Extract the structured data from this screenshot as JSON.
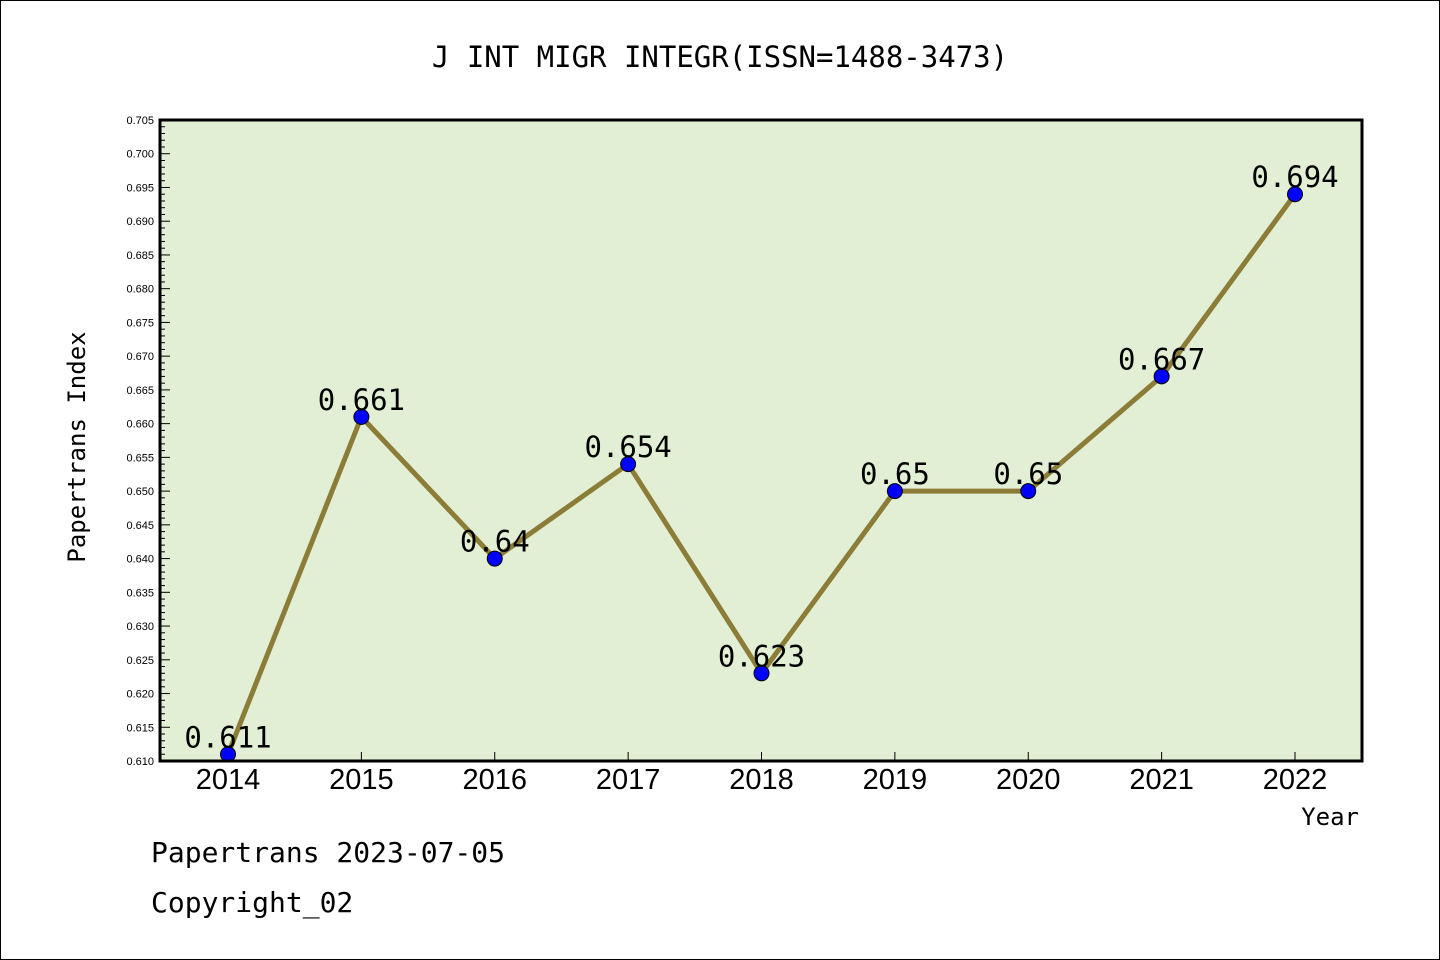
{
  "chart_data": {
    "type": "line",
    "title": "J INT MIGR INTEGR(ISSN=1488-3473)",
    "xlabel": "Year",
    "ylabel": "Papertrans Index",
    "categories": [
      "2014",
      "2015",
      "2016",
      "2017",
      "2018",
      "2019",
      "2020",
      "2021",
      "2022"
    ],
    "series": [
      {
        "values": [
          0.611,
          0.661,
          0.64,
          0.654,
          0.623,
          0.65,
          0.65,
          0.667,
          0.694
        ],
        "labels": [
          "0.611",
          "0.661",
          "0.64",
          "0.654",
          "0.623",
          "0.65",
          "0.65",
          "0.667",
          "0.694"
        ],
        "line_color": "#8b7d37",
        "marker_color": "#0000ff"
      }
    ],
    "ylim": [
      0.61,
      0.705
    ],
    "yticks": [
      "0.610",
      "0.615",
      "0.620",
      "0.625",
      "0.630",
      "0.635",
      "0.640",
      "0.645",
      "0.650",
      "0.655",
      "0.660",
      "0.665",
      "0.670",
      "0.675",
      "0.680",
      "0.685",
      "0.690",
      "0.695",
      "0.700",
      "0.705"
    ],
    "plot_background": "#e2efd5",
    "grid": false
  },
  "footer": {
    "line1": "Papertrans 2023-07-05",
    "line2": "Copyright_02"
  }
}
